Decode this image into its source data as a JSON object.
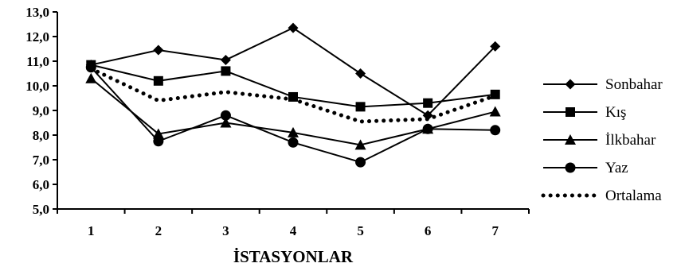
{
  "chart_data": {
    "type": "line",
    "title": "",
    "xlabel": "İSTASYONLAR",
    "ylabel": "",
    "x": [
      1,
      2,
      3,
      4,
      5,
      6,
      7
    ],
    "x_tick_labels": [
      "1",
      "2",
      "3",
      "4",
      "5",
      "6",
      "7"
    ],
    "ylim": [
      5.0,
      13.0
    ],
    "y_ticks": [
      5.0,
      6.0,
      7.0,
      8.0,
      9.0,
      10.0,
      11.0,
      12.0,
      13.0
    ],
    "y_tick_labels": [
      "5,0",
      "6,0",
      "7,0",
      "8,0",
      "9,0",
      "10,0",
      "11,0",
      "12,0",
      "13,0"
    ],
    "grid": false,
    "legend_position": "right",
    "series": [
      {
        "name": "Sonbahar",
        "marker": "diamond",
        "line": "solid",
        "values": [
          10.85,
          11.45,
          11.05,
          12.35,
          10.5,
          8.8,
          11.6
        ]
      },
      {
        "name": "Kış",
        "marker": "square",
        "line": "solid",
        "values": [
          10.85,
          10.2,
          10.6,
          9.55,
          9.15,
          9.3,
          9.65
        ]
      },
      {
        "name": "İlkbahar",
        "marker": "triangle",
        "line": "solid",
        "values": [
          10.3,
          8.05,
          8.5,
          8.1,
          7.6,
          8.25,
          8.95
        ]
      },
      {
        "name": "Yaz",
        "marker": "circle",
        "line": "solid",
        "values": [
          10.75,
          7.75,
          8.8,
          7.7,
          6.9,
          8.25,
          8.2
        ]
      },
      {
        "name": "Ortalama",
        "marker": "none",
        "line": "dotted",
        "values": [
          10.7,
          9.4,
          9.75,
          9.45,
          8.55,
          8.65,
          9.6
        ]
      }
    ],
    "colors": {
      "series": "#000000",
      "background": "#ffffff"
    }
  }
}
